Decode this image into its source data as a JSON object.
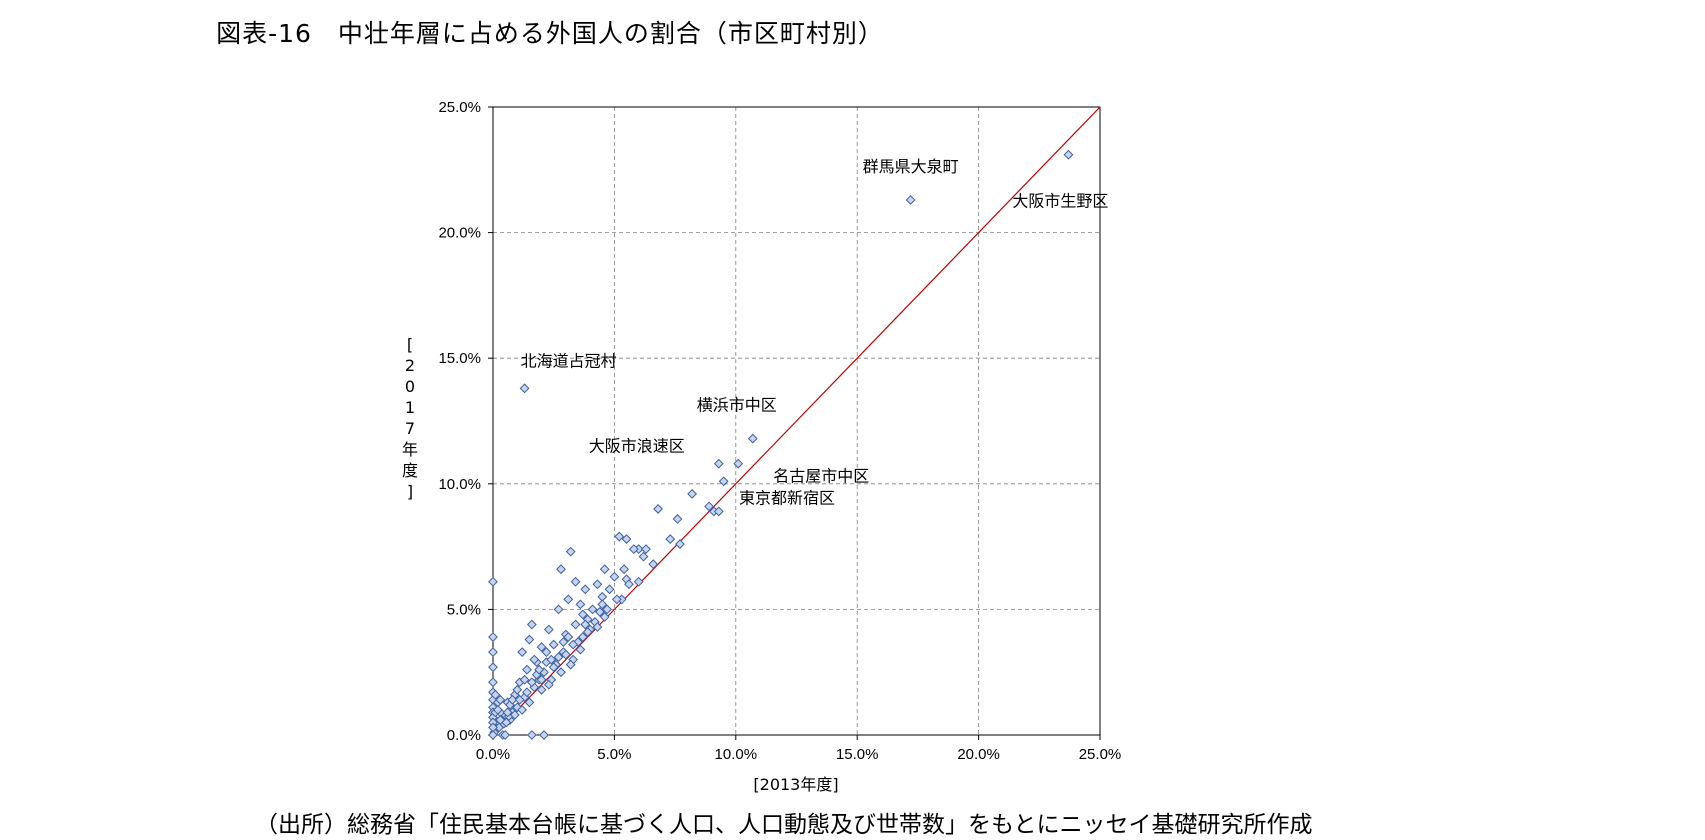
{
  "title": "図表-16　中壮年層に占める外国人の割合（市区町村別）",
  "source": "（出所）総務省「住民基本台帳に基づく人口、人口動態及び世帯数」をもとにニッセイ基礎研究所作成",
  "chart_data": {
    "type": "scatter",
    "xlabel": "[2013年度]",
    "ylabel": "[2017年度]",
    "xlim": [
      0,
      25
    ],
    "ylim": [
      0,
      25
    ],
    "x_ticks": [
      "0.0%",
      "5.0%",
      "10.0%",
      "15.0%",
      "20.0%",
      "25.0%"
    ],
    "y_ticks": [
      "0.0%",
      "5.0%",
      "10.0%",
      "15.0%",
      "20.0%",
      "25.0%"
    ],
    "grid": true,
    "reference_line": "y = x",
    "colors": {
      "marker_fill": "#c5d5f0",
      "marker_stroke": "#3f5f9f",
      "reference_line": "#c00000",
      "grid": "#808080"
    },
    "annotations": [
      {
        "label": "群馬県大泉町",
        "x": 17.2,
        "y": 21.3
      },
      {
        "label": "大阪市生野区",
        "x": 23.7,
        "y": 23.1
      },
      {
        "label": "北海道占冠村",
        "x": 1.3,
        "y": 13.8
      },
      {
        "label": "横浜市中区",
        "x": 10.7,
        "y": 11.8
      },
      {
        "label": "大阪市浪速区",
        "x": 9.3,
        "y": 10.8
      },
      {
        "label": "名古屋市中区",
        "x": 10.1,
        "y": 10.8
      },
      {
        "label": "東京都新宿区",
        "x": 9.1,
        "y": 8.9
      }
    ],
    "points": [
      [
        17.2,
        21.3
      ],
      [
        23.7,
        23.1
      ],
      [
        1.3,
        13.8
      ],
      [
        10.7,
        11.8
      ],
      [
        9.3,
        10.8
      ],
      [
        10.1,
        10.8
      ],
      [
        9.5,
        10.1
      ],
      [
        9.1,
        8.9
      ],
      [
        8.9,
        9.1
      ],
      [
        9.3,
        8.9
      ],
      [
        8.2,
        9.6
      ],
      [
        6.8,
        9.0
      ],
      [
        7.6,
        8.6
      ],
      [
        7.3,
        7.8
      ],
      [
        7.7,
        7.6
      ],
      [
        6.0,
        7.4
      ],
      [
        6.3,
        7.4
      ],
      [
        5.2,
        7.9
      ],
      [
        5.5,
        7.8
      ],
      [
        5.8,
        7.4
      ],
      [
        6.0,
        6.1
      ],
      [
        6.6,
        6.8
      ],
      [
        5.4,
        6.6
      ],
      [
        5.0,
        6.3
      ],
      [
        4.6,
        6.6
      ],
      [
        3.2,
        7.3
      ],
      [
        2.8,
        6.6
      ],
      [
        3.4,
        6.1
      ],
      [
        3.8,
        5.8
      ],
      [
        4.3,
        6.0
      ],
      [
        4.8,
        5.8
      ],
      [
        5.3,
        5.4
      ],
      [
        5.5,
        6.2
      ],
      [
        4.5,
        5.5
      ],
      [
        4.1,
        5.0
      ],
      [
        3.6,
        5.2
      ],
      [
        3.1,
        5.4
      ],
      [
        2.7,
        5.0
      ],
      [
        3.4,
        4.4
      ],
      [
        3.9,
        4.6
      ],
      [
        4.4,
        4.9
      ],
      [
        2.3,
        4.2
      ],
      [
        2.0,
        3.5
      ],
      [
        1.5,
        3.8
      ],
      [
        1.2,
        3.3
      ],
      [
        1.6,
        4.4
      ],
      [
        1.8,
        2.9
      ],
      [
        2.5,
        3.6
      ],
      [
        2.9,
        3.3
      ],
      [
        3.3,
        3.0
      ],
      [
        3.7,
        3.9
      ],
      [
        3.0,
        4.0
      ],
      [
        2.2,
        2.9
      ],
      [
        1.9,
        2.2
      ],
      [
        1.4,
        2.6
      ],
      [
        1.1,
        2.1
      ],
      [
        0.9,
        1.6
      ],
      [
        1.3,
        1.5
      ],
      [
        1.7,
        1.9
      ],
      [
        2.1,
        2.5
      ],
      [
        2.6,
        2.8
      ],
      [
        2.4,
        2.2
      ],
      [
        2.0,
        1.8
      ],
      [
        1.5,
        1.3
      ],
      [
        1.0,
        1.1
      ],
      [
        0.8,
        0.9
      ],
      [
        0.6,
        1.3
      ],
      [
        0.5,
        0.8
      ],
      [
        0.7,
        0.6
      ],
      [
        0.4,
        0.5
      ],
      [
        0.3,
        0.9
      ],
      [
        0.2,
        0.4
      ],
      [
        0.15,
        0.25
      ],
      [
        0.1,
        0.2
      ],
      [
        0.05,
        0.1
      ],
      [
        0.25,
        0.3
      ],
      [
        0.35,
        0.6
      ],
      [
        0.45,
        0.45
      ],
      [
        0.55,
        0.5
      ],
      [
        0.65,
        0.75
      ],
      [
        0.9,
        0.8
      ],
      [
        1.2,
        1.0
      ],
      [
        1.4,
        1.7
      ],
      [
        1.8,
        2.4
      ],
      [
        2.3,
        2.0
      ],
      [
        2.8,
        2.5
      ],
      [
        3.2,
        2.8
      ],
      [
        3.6,
        3.4
      ],
      [
        4.0,
        4.2
      ],
      [
        4.7,
        5.0
      ],
      [
        4.2,
        4.5
      ],
      [
        3.5,
        3.7
      ],
      [
        2.7,
        3.1
      ],
      [
        1.6,
        2.1
      ],
      [
        1.0,
        1.8
      ],
      [
        0.7,
        1.2
      ],
      [
        0.0,
        6.1
      ],
      [
        0.0,
        3.9
      ],
      [
        0.0,
        3.3
      ],
      [
        0.0,
        2.7
      ],
      [
        0.0,
        2.1
      ],
      [
        0.0,
        1.7
      ],
      [
        0.0,
        1.4
      ],
      [
        0.0,
        1.1
      ],
      [
        0.0,
        0.9
      ],
      [
        0.0,
        0.7
      ],
      [
        0.0,
        0.5
      ],
      [
        0.0,
        0.3
      ],
      [
        0.0,
        0.0
      ],
      [
        0.1,
        1.6
      ],
      [
        0.2,
        1.3
      ],
      [
        0.1,
        0.9
      ],
      [
        0.3,
        1.4
      ],
      [
        0.2,
        1.0
      ],
      [
        0.4,
        0.0
      ],
      [
        0.5,
        0.0
      ],
      [
        1.6,
        0.0
      ],
      [
        2.1,
        0.0
      ],
      [
        4.6,
        4.7
      ],
      [
        5.1,
        5.4
      ],
      [
        3.9,
        4.1
      ],
      [
        3.3,
        3.6
      ],
      [
        2.5,
        2.7
      ],
      [
        2.9,
        3.7
      ],
      [
        1.9,
        2.6
      ],
      [
        1.3,
        2.2
      ],
      [
        0.8,
        1.4
      ],
      [
        4.3,
        4.3
      ],
      [
        3.7,
        4.8
      ],
      [
        3.0,
        3.2
      ],
      [
        2.2,
        3.3
      ],
      [
        1.7,
        3.0
      ],
      [
        1.1,
        1.4
      ],
      [
        0.6,
        0.9
      ],
      [
        0.3,
        0.6
      ],
      [
        2.0,
        2.2
      ],
      [
        2.4,
        3.0
      ],
      [
        3.1,
        3.9
      ],
      [
        3.8,
        4.4
      ],
      [
        4.5,
        5.2
      ],
      [
        5.6,
        6.0
      ],
      [
        6.2,
        7.1
      ]
    ]
  }
}
